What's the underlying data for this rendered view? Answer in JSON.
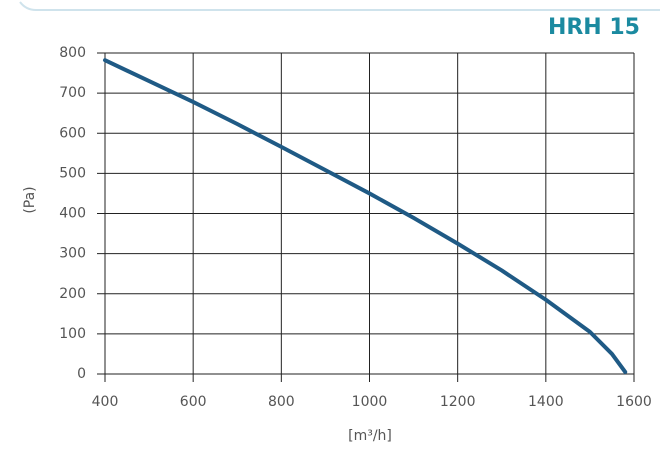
{
  "chart_data": {
    "type": "line",
    "title": "HRH 15",
    "y_label": "(Pa)",
    "x_label": "[m³/h]",
    "x": [
      400,
      500,
      600,
      700,
      800,
      900,
      1000,
      1100,
      1200,
      1300,
      1400,
      1500,
      1550,
      1580
    ],
    "series": [
      {
        "color": "#1f5a85",
        "values": [
          782,
          730,
          678,
          623,
          566,
          508,
          450,
          389,
          325,
          258,
          185,
          105,
          50,
          5
        ]
      }
    ],
    "xlim": [
      400,
      1600
    ],
    "xticks": [
      400,
      600,
      800,
      1000,
      1200,
      1400,
      1600
    ],
    "ylim": [
      0,
      800
    ],
    "yticks": [
      0,
      100,
      200,
      300,
      400,
      500,
      600,
      700,
      800
    ],
    "grid": true,
    "title_color": "#1b8aa0"
  }
}
